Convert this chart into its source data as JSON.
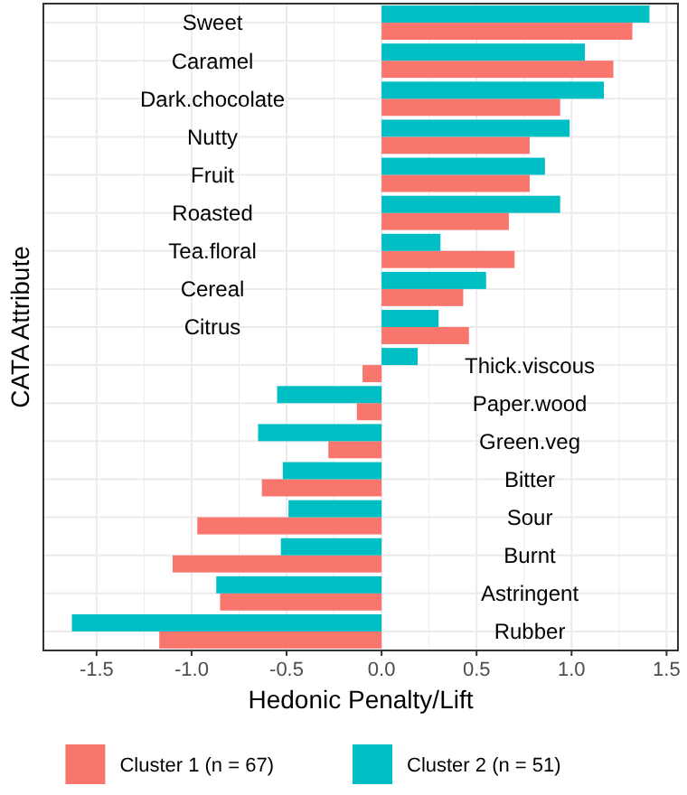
{
  "chart_data": {
    "type": "bar",
    "orientation": "horizontal",
    "xlabel": "Hedonic Penalty/Lift",
    "ylabel": "CATA Attribute",
    "categories": [
      "Sweet",
      "Caramel",
      "Dark.chocolate",
      "Nutty",
      "Fruit",
      "Roasted",
      "Tea.floral",
      "Cereal",
      "Citrus",
      "Thick.viscous",
      "Paper.wood",
      "Green.veg",
      "Bitter",
      "Sour",
      "Burnt",
      "Astringent",
      "Rubber"
    ],
    "series": [
      {
        "name": "Cluster 1 (n = 67)",
        "color": "#f8766d",
        "values": [
          1.32,
          1.22,
          0.94,
          0.78,
          0.78,
          0.67,
          0.7,
          0.43,
          0.46,
          -0.1,
          -0.13,
          -0.28,
          -0.63,
          -0.97,
          -1.1,
          -0.85,
          -1.17
        ]
      },
      {
        "name": "Cluster 2 (n = 51)",
        "color": "#00bfc4",
        "values": [
          1.41,
          1.07,
          1.17,
          0.99,
          0.86,
          0.94,
          0.31,
          0.55,
          0.3,
          0.19,
          -0.55,
          -0.65,
          -0.52,
          -0.49,
          -0.53,
          -0.87,
          -1.63
        ]
      }
    ],
    "xlim": [
      -1.78,
      1.56
    ],
    "xticks": [
      {
        "value": -1.5,
        "label": "-1.5"
      },
      {
        "value": -1,
        "label": "-1.0"
      },
      {
        "value": -0.5,
        "label": "-0.5"
      },
      {
        "value": 0,
        "label": "0.0"
      },
      {
        "value": 0.5,
        "label": "0.5"
      },
      {
        "value": 1,
        "label": "1.0"
      },
      {
        "value": 1.5,
        "label": "1.5"
      }
    ],
    "grid": true,
    "legend": "bottom"
  }
}
